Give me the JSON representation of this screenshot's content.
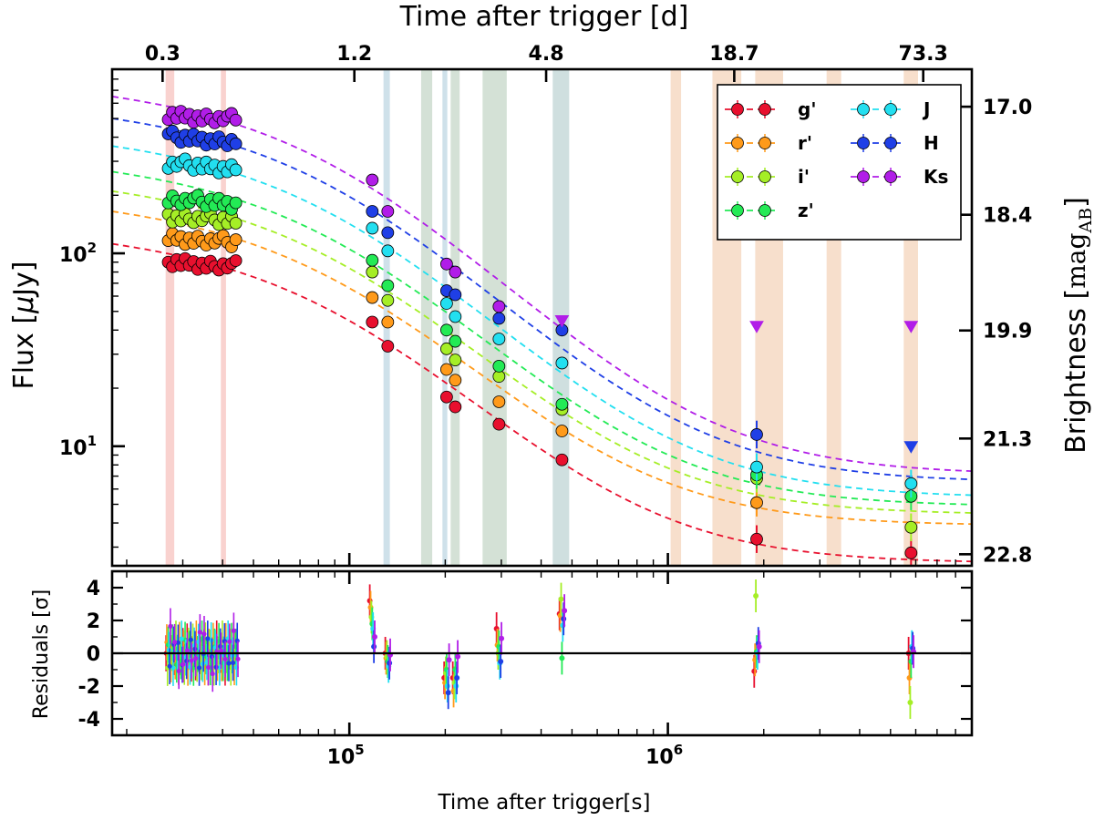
{
  "chart_data": {
    "type": "scatter",
    "top_xlabel": "Time after trigger [d]",
    "top_ticks": [
      "0.3",
      "1.2",
      "4.8",
      "18.7",
      "73.3"
    ],
    "top_tick_seconds": [
      25920,
      103680,
      414720,
      1615680,
      6333120
    ],
    "xlabel": "Time after trigger[s]",
    "xlim": [
      18000,
      9000000
    ],
    "xscale": "log",
    "x_major_ticks": [
      {
        "value": 100000,
        "base": "10",
        "exp": "5"
      },
      {
        "value": 1000000,
        "base": "10",
        "exp": "6"
      }
    ],
    "main_panel": {
      "ylabel_pre": "Flux [",
      "ylabel_mu": "μ",
      "ylabel_post": "Jy]",
      "ylim": [
        2.4,
        900
      ],
      "yscale": "log",
      "y_major_ticks": [
        {
          "value": 10,
          "base": "10",
          "exp": "1"
        },
        {
          "value": 100,
          "base": "10",
          "exp": "2"
        }
      ],
      "right_ylabel": "Brightness [",
      "right_ylabel_math": "mag",
      "right_ylabel_sub": "AB",
      "right_ylabel_close": "]",
      "right_ticks": [
        {
          "label": "17.0",
          "mag": 17.0
        },
        {
          "label": "18.4",
          "mag": 18.4
        },
        {
          "label": "19.9",
          "mag": 19.9
        },
        {
          "label": "21.3",
          "mag": 21.3
        },
        {
          "label": "22.8",
          "mag": 22.8
        }
      ]
    },
    "residual_panel": {
      "ylabel": "Residuals [σ]",
      "ylim": [
        -5,
        5
      ],
      "y_ticks": [
        "4",
        "2",
        "0",
        "-2",
        "-4"
      ],
      "y_tick_values": [
        4,
        2,
        0,
        -2,
        -4
      ]
    },
    "bands": [
      {
        "name": "g'",
        "color": "#e8102e"
      },
      {
        "name": "r'",
        "color": "#ff9a1a"
      },
      {
        "name": "i'",
        "color": "#a5ee26"
      },
      {
        "name": "z'",
        "color": "#23ea55"
      },
      {
        "name": "J",
        "color": "#22dff0"
      },
      {
        "name": "H",
        "color": "#1f3fe6"
      },
      {
        "name": "Ks",
        "color": "#b11de8"
      }
    ],
    "model_start_flux": [
      112,
      165,
      210,
      265,
      360,
      500,
      650
    ],
    "model_end_flux": [
      2.75,
      4.3,
      4.9,
      5.4,
      6.0,
      7.2,
      7.9
    ],
    "early_data": {
      "t_start": 27000,
      "t_end": 44000,
      "n_points": 17,
      "flux": [
        90,
        120,
        155,
        190,
        290,
        400,
        520
      ]
    },
    "late_data": [
      {
        "t": 118000,
        "flux": [
          44,
          59,
          80,
          92,
          135,
          165,
          240
        ]
      },
      {
        "t": 132000,
        "flux": [
          33,
          44,
          57,
          68,
          103,
          128,
          165
        ]
      },
      {
        "t": 202000,
        "flux": [
          18,
          25,
          32,
          40,
          55,
          64,
          88
        ]
      },
      {
        "t": 215000,
        "flux": [
          16,
          22,
          28,
          35,
          47,
          61,
          80
        ]
      },
      {
        "t": 295000,
        "flux": [
          13,
          17,
          23,
          26,
          36,
          46,
          53
        ]
      },
      {
        "t": 465000,
        "flux": [
          8.5,
          12,
          15.5,
          16.5,
          27,
          40,
          45
        ],
        "upper_limits": {
          "Ks": 45
        }
      },
      {
        "t": 1900000,
        "flux": [
          3.3,
          5.1,
          6.8,
          7.1,
          7.8,
          11.5,
          42
        ],
        "upper_limits": {
          "Ks": 42
        }
      },
      {
        "t": 5800000,
        "flux": [
          2.8,
          null,
          3.8,
          5.5,
          6.4,
          10,
          42
        ],
        "upper_limits": {
          "H": 10,
          "Ks": 42
        }
      }
    ],
    "residual_points": [
      {
        "t": 118000,
        "res": [
          3.2,
          2.8,
          2.2,
          1.8,
          1.5,
          0.4,
          1.0
        ]
      },
      {
        "t": 132000,
        "res": [
          0.0,
          -0.3,
          -0.2,
          -0.5,
          -0.8,
          -0.6,
          -0.1
        ]
      },
      {
        "t": 202000,
        "res": [
          -1.5,
          -1.8,
          -1.2,
          -1.0,
          -2.0,
          -2.4,
          -0.4
        ]
      },
      {
        "t": 215000,
        "res": [
          -1.5,
          -2.3,
          -1.8,
          -1.0,
          -2.0,
          -1.5,
          -0.2
        ]
      },
      {
        "t": 295000,
        "res": [
          1.5,
          0.5,
          0.0,
          0.4,
          -0.6,
          -0.5,
          0.9
        ]
      },
      {
        "t": 465000,
        "res": [
          2.4,
          2.3,
          3.3,
          -0.3,
          1.7,
          2.1,
          2.6
        ]
      },
      {
        "t": 1900000,
        "res": [
          -1.1,
          -0.4,
          3.5,
          0.1,
          0.0,
          0.6,
          0.4
        ]
      },
      {
        "t": 5800000,
        "res": [
          0.0,
          -1.5,
          -3.0,
          -0.5,
          0.4,
          0.3,
          0.1
        ]
      }
    ],
    "shaded_intervals": [
      {
        "t0": 26500,
        "t1": 28200,
        "color": "#f4a6a0"
      },
      {
        "t0": 39500,
        "t1": 41000,
        "color": "#f4a6a0"
      },
      {
        "t0": 128000,
        "t1": 134000,
        "color": "#9fc3d6"
      },
      {
        "t0": 168000,
        "t1": 182000,
        "color": "#a9c4ad"
      },
      {
        "t0": 196000,
        "t1": 203000,
        "color": "#9fc3d6"
      },
      {
        "t0": 208000,
        "t1": 222000,
        "color": "#a9c4ad"
      },
      {
        "t0": 262000,
        "t1": 312000,
        "color": "#a9c4ad"
      },
      {
        "t0": 435000,
        "t1": 490000,
        "color": "#9fbfc0"
      },
      {
        "t0": 1020000,
        "t1": 1100000,
        "color": "#f0c09a"
      },
      {
        "t0": 1380000,
        "t1": 1700000,
        "color": "#f0c09a"
      },
      {
        "t0": 1880000,
        "t1": 2300000,
        "color": "#f0c09a"
      },
      {
        "t0": 3150000,
        "t1": 3500000,
        "color": "#f0c09a"
      },
      {
        "t0": 5500000,
        "t1": 6100000,
        "color": "#f0c09a"
      }
    ]
  }
}
